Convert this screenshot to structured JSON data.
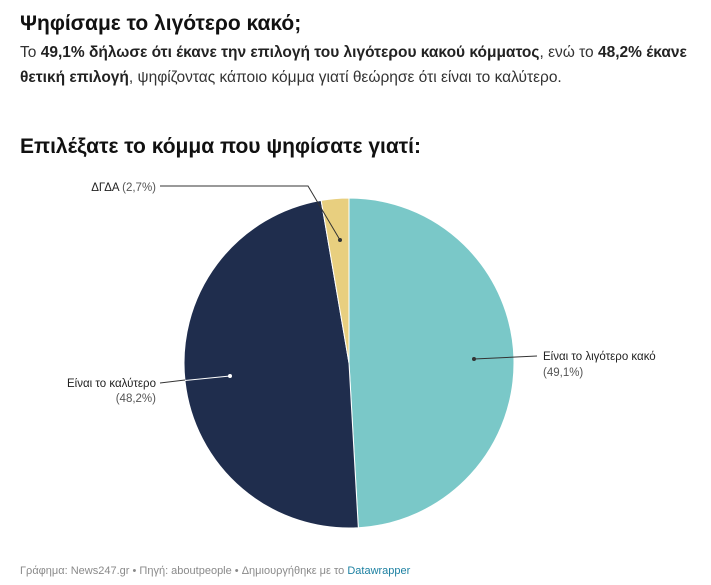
{
  "header": {
    "title": "Ψηφίσαμε το λιγότερο κακό;",
    "desc": {
      "p1": "Το ",
      "b1": "49,1% δήλωσε ότι έκανε την επιλογή του λιγότερου κακού κόμματος",
      "p2": ", ενώ το ",
      "b2": "48,2% έκανε θετική επιλογή",
      "p3": ", ψηφίζοντας κάποιο κόμμα γιατί θεώρησε ότι είναι το καλύτερο."
    },
    "subtitle": "Επιλέξατε το κόμμα που ψηφίσατε γιατί:"
  },
  "chart_data": {
    "type": "pie",
    "title": "Επιλέξατε το κόμμα που ψηφίσατε γιατί:",
    "slices": [
      {
        "label": "Είναι το λιγότερο κακό",
        "value": 49.1,
        "value_label": "(49,1%)",
        "color": "#7ac8c8"
      },
      {
        "label": "Είναι το καλύτερο",
        "value": 48.2,
        "value_label": "(48,2%)",
        "color": "#1f2d4d"
      },
      {
        "label": "ΔΓΔΑ",
        "value": 2.7,
        "value_label": "(2,7%)",
        "color": "#e8cf7f"
      }
    ]
  },
  "footer": {
    "prefix": "Γράφημα: News247.gr • Πηγή: aboutpeople • Δημιουργήθηκε με το ",
    "link": "Datawrapper"
  }
}
